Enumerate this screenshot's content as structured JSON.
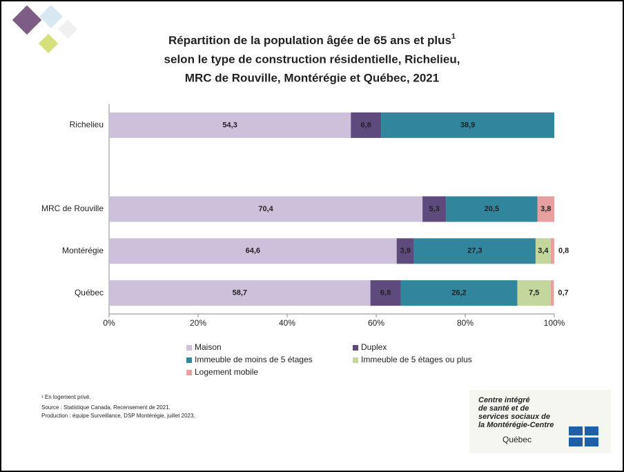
{
  "chart_data": {
    "type": "stacked_barh",
    "title": [
      "Répartition de la population âgée de 65 ans et plus",
      "selon le type de construction résidentielle, Richelieu,",
      "MRC de Rouville, Montérégie et Québec, 2021"
    ],
    "title_superscript": "1",
    "categories": [
      "Richelieu",
      null,
      "MRC de Rouville",
      "Montérégie",
      "Québec"
    ],
    "series": [
      {
        "name": "Maison",
        "color": "#ccc0da",
        "values": [
          54.3,
          null,
          70.4,
          64.6,
          58.7
        ],
        "value_labels": [
          "54,3",
          null,
          "70,4",
          "64,6",
          "58,7"
        ]
      },
      {
        "name": "Duplex",
        "color": "#5f4a7e",
        "values": [
          6.8,
          null,
          5.3,
          3.9,
          6.8
        ],
        "value_labels": [
          "6,8",
          null,
          "5,3",
          "3,9",
          "6,8"
        ]
      },
      {
        "name": "Immeuble de moins de 5 étages",
        "color": "#31859c",
        "values": [
          38.9,
          null,
          20.5,
          27.3,
          26.2
        ],
        "value_labels": [
          "38,9",
          null,
          "20,5",
          "27,3",
          "26,2"
        ]
      },
      {
        "name": "Immeuble de 5 étages ou plus",
        "color": "#c3d69b",
        "values": [
          null,
          null,
          null,
          3.4,
          7.5
        ],
        "value_labels": [
          null,
          null,
          null,
          "3,4",
          "7,5"
        ]
      },
      {
        "name": "Logement mobile",
        "color": "#e6a0a0",
        "values": [
          null,
          null,
          3.8,
          0.8,
          0.7
        ],
        "value_labels": [
          null,
          null,
          "3,8",
          "0,8",
          "0,7"
        ]
      }
    ],
    "xlim": [
      0,
      100
    ],
    "xticks": [
      {
        "value": 0,
        "label": "0%"
      },
      {
        "value": 20,
        "label": "20%"
      },
      {
        "value": 40,
        "label": "40%"
      },
      {
        "value": 60,
        "label": "60%"
      },
      {
        "value": 80,
        "label": "80%"
      },
      {
        "value": 100,
        "label": "100%"
      }
    ],
    "legend": "bottom"
  },
  "notes": [
    "¹ En logement privé.",
    "Source : Statistique Canada, Recensement de 2021.",
    "Production : équipe Surveillance, DSP Montérégie, juillet 2023."
  ],
  "logo": {
    "lines": [
      "Centre intégré",
      "de santé et de",
      "services sociaux de",
      "la Montérégie-Centre"
    ],
    "name": "Québec"
  }
}
